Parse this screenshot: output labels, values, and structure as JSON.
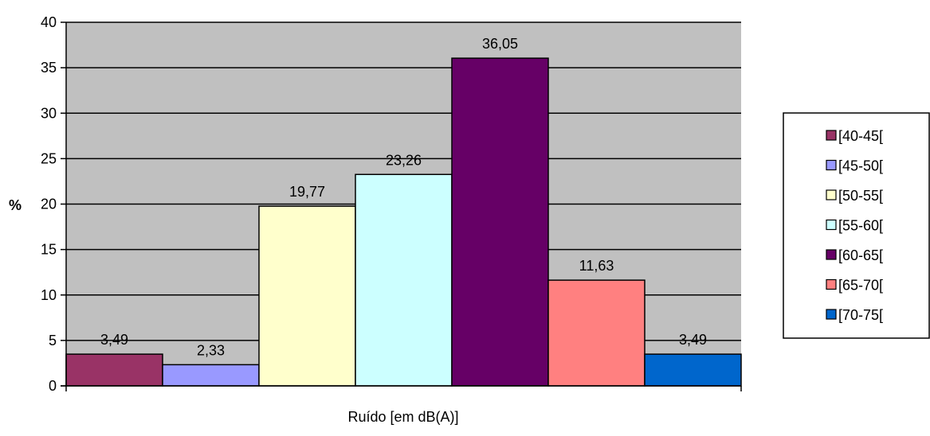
{
  "chart_data": {
    "type": "bar",
    "title": "",
    "xlabel": "Ruído [em dB(A)]",
    "ylabel": "%",
    "ylim": [
      0,
      40
    ],
    "yticks": [
      0,
      5,
      10,
      15,
      20,
      25,
      30,
      35,
      40
    ],
    "grid": true,
    "legend_position": "right",
    "series": [
      {
        "name": "[40-45[",
        "value": 3.49,
        "label": "3,49",
        "color": "#993366"
      },
      {
        "name": "[45-50[",
        "value": 2.33,
        "label": "2,33",
        "color": "#9999ff"
      },
      {
        "name": "[50-55[",
        "value": 19.77,
        "label": "19,77",
        "color": "#ffffcc"
      },
      {
        "name": "[55-60[",
        "value": 23.26,
        "label": "23,26",
        "color": "#ccffff"
      },
      {
        "name": "[60-65[",
        "value": 36.05,
        "label": "36,05",
        "color": "#660066"
      },
      {
        "name": "[65-70[",
        "value": 11.63,
        "label": "11,63",
        "color": "#ff8080"
      },
      {
        "name": "[70-75[",
        "value": 3.49,
        "label": "3,49",
        "color": "#0066cc"
      }
    ],
    "plot_background": "#c0c0c0"
  }
}
